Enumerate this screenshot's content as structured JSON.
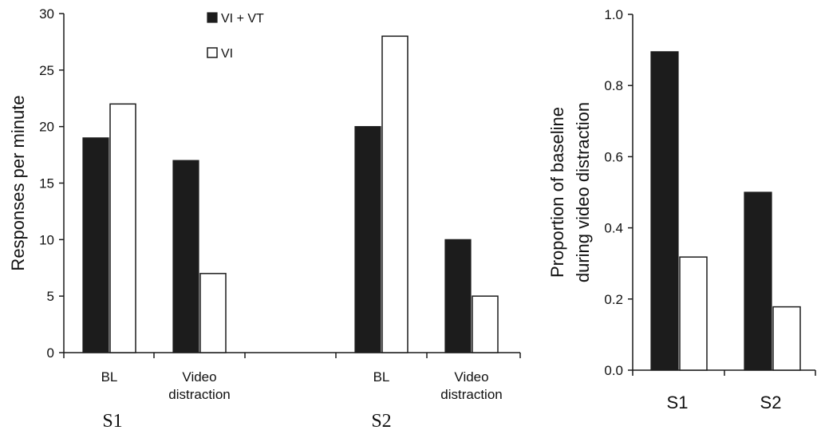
{
  "chart_data": [
    {
      "type": "bar",
      "ylabel": "Responses per minute",
      "ylim": [
        0,
        30
      ],
      "yticks": [
        "0",
        "5",
        "10",
        "15",
        "20",
        "25",
        "30"
      ],
      "groups": [
        {
          "subject": "S1",
          "categories": [
            [
              "BL"
            ],
            [
              "Video",
              "distraction"
            ]
          ]
        },
        {
          "subject": "S2",
          "categories": [
            [
              "BL"
            ],
            [
              "Video",
              "distraction"
            ]
          ]
        }
      ],
      "series": [
        {
          "name": "VI + VT",
          "color": "#1c1c1c",
          "values": [
            19,
            17,
            20,
            10
          ]
        },
        {
          "name": "VI",
          "color": "#ffffff",
          "values": [
            22,
            7,
            28,
            5
          ]
        }
      ],
      "legend_position": "top-center"
    },
    {
      "type": "bar",
      "ylabel": [
        "Proportion of baseline",
        "during video distraction"
      ],
      "ylim": [
        0,
        1.0
      ],
      "yticks": [
        "0.0",
        "0.2",
        "0.4",
        "0.6",
        "0.8",
        "1.0"
      ],
      "categories": [
        "S1",
        "S2"
      ],
      "series": [
        {
          "name": "VI + VT",
          "color": "#1c1c1c",
          "values": [
            0.895,
            0.5
          ]
        },
        {
          "name": "VI",
          "color": "#ffffff",
          "values": [
            0.318,
            0.178
          ]
        }
      ]
    }
  ]
}
